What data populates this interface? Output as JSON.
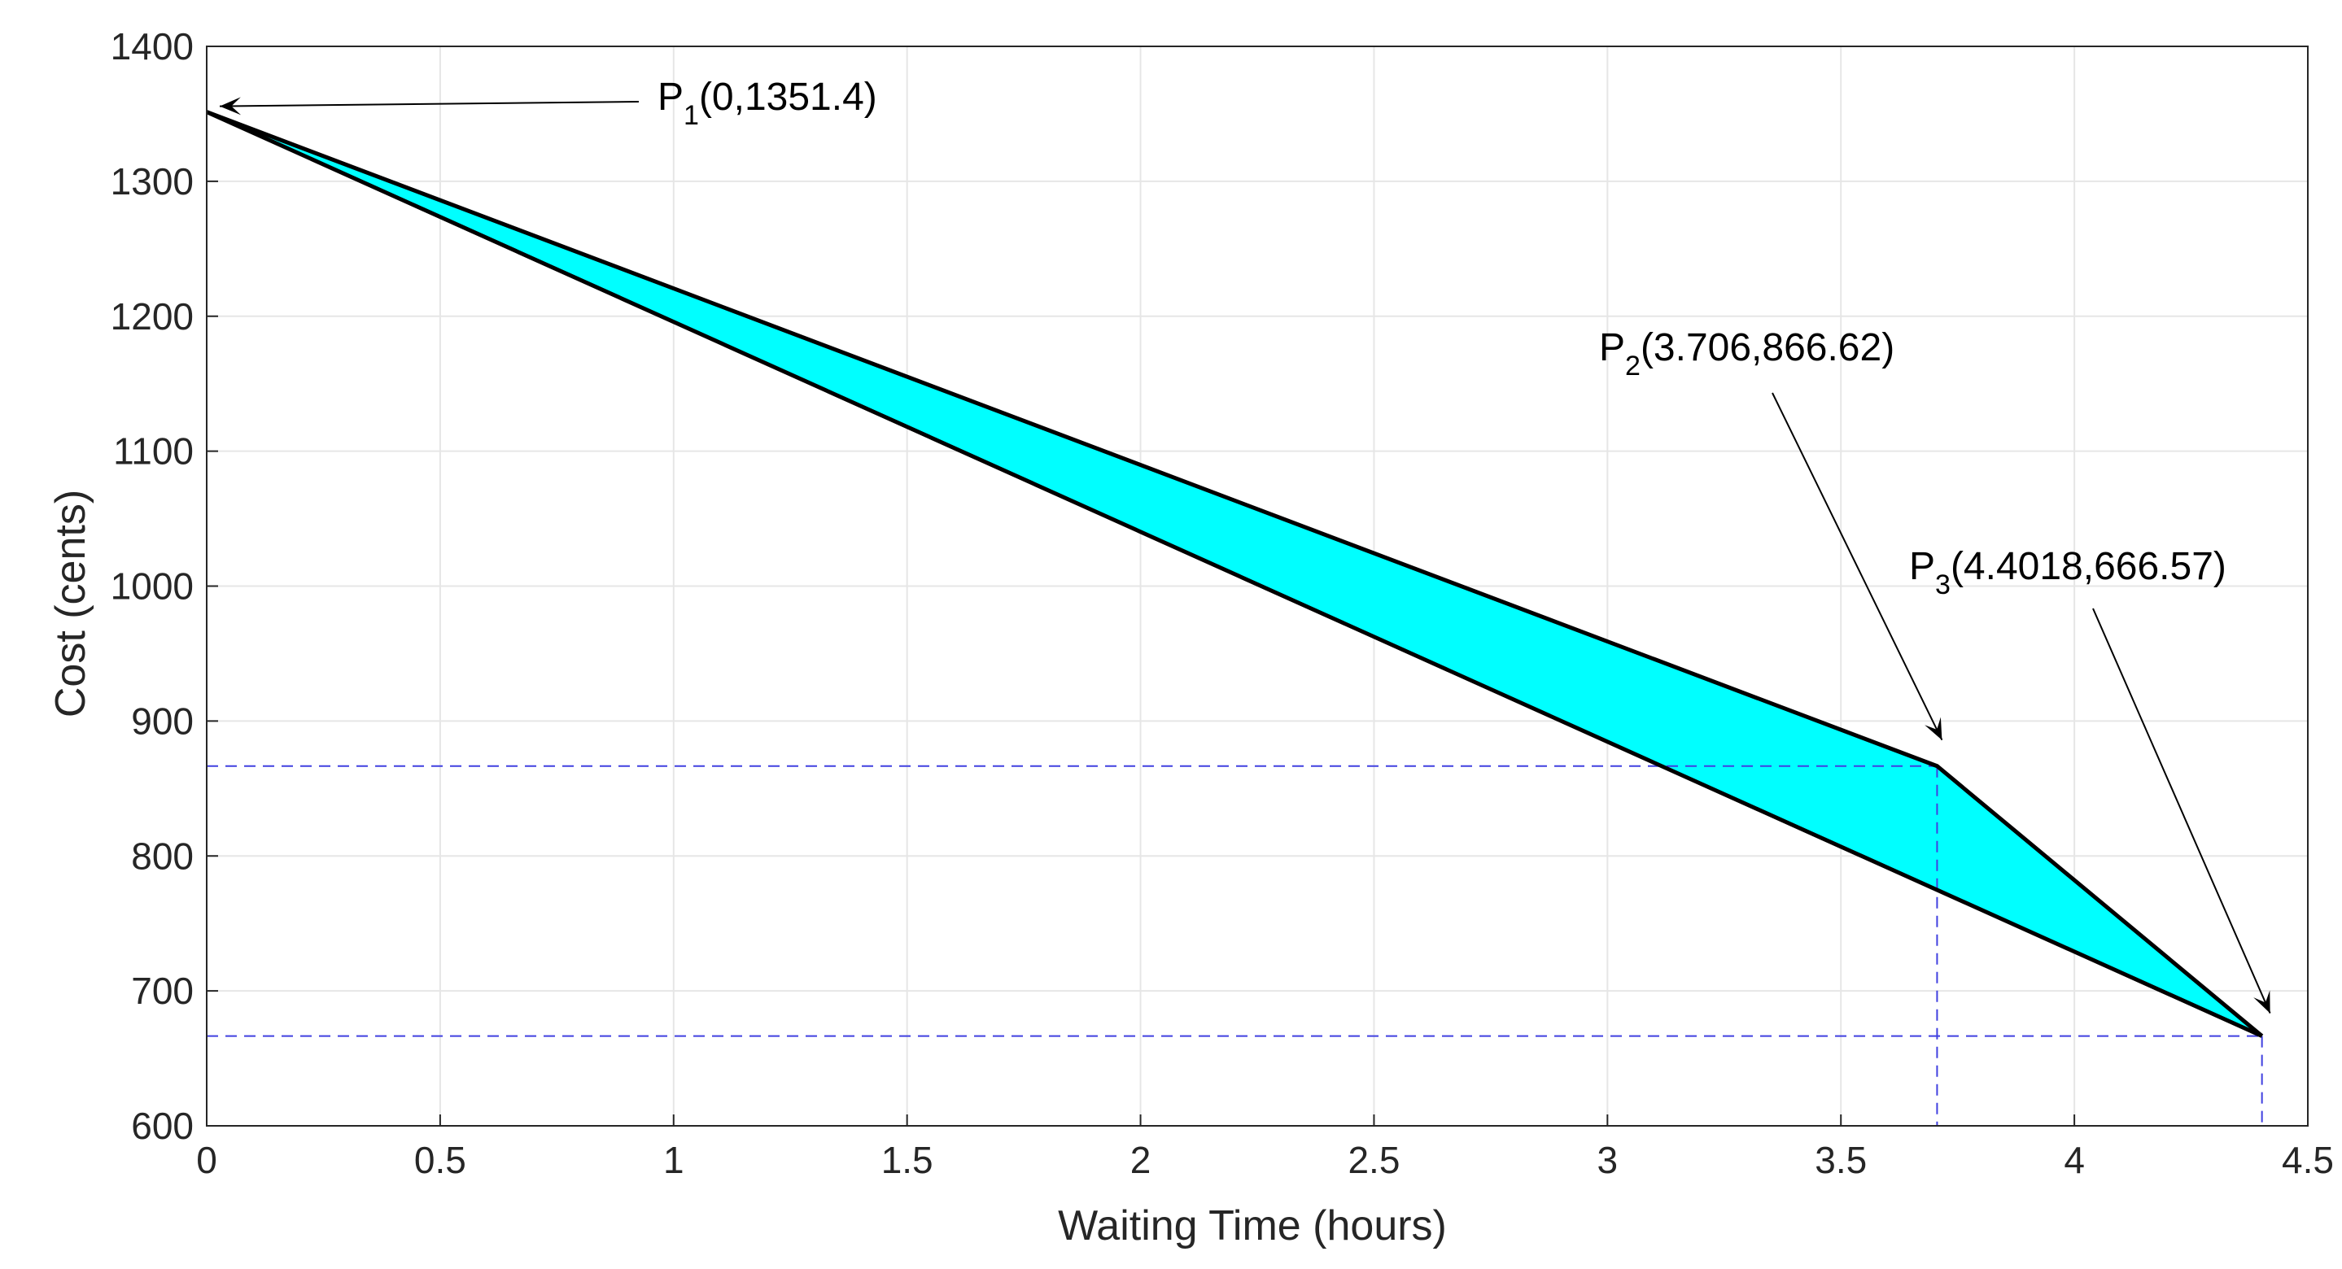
{
  "chart_data": {
    "type": "area",
    "xlabel": "Waiting Time (hours)",
    "ylabel": "Cost (cents)",
    "xlim": [
      0,
      4.5
    ],
    "ylim": [
      600,
      1400
    ],
    "xticks": [
      "0",
      "0.5",
      "1",
      "1.5",
      "2",
      "2.5",
      "3",
      "3.5",
      "4",
      "4.5"
    ],
    "yticks": [
      "600",
      "700",
      "800",
      "900",
      "1000",
      "1100",
      "1200",
      "1300",
      "1400"
    ],
    "grid": true,
    "series": [
      {
        "x": [
          0,
          3.706,
          4.4018
        ],
        "y": [
          1351.4,
          866.62,
          666.57
        ]
      },
      {
        "x": [
          0,
          4.4018
        ],
        "y": [
          1351.4,
          666.57
        ]
      }
    ],
    "fill_color": "#00ffff",
    "reference_lines": [
      {
        "x": 3.706,
        "y": 866.62
      },
      {
        "x": 4.4018,
        "y": 666.57
      }
    ],
    "reference_color": "#4040e0",
    "annotations": [
      {
        "label": "P",
        "sub": "1",
        "coords": "(0,1351.4)",
        "point": [
          0,
          1351.4
        ]
      },
      {
        "label": "P",
        "sub": "2",
        "coords": "(3.706,866.62)",
        "point": [
          3.706,
          866.62
        ]
      },
      {
        "label": "P",
        "sub": "3",
        "coords": "(4.4018,666.57)",
        "point": [
          4.4018,
          666.57
        ]
      }
    ]
  }
}
